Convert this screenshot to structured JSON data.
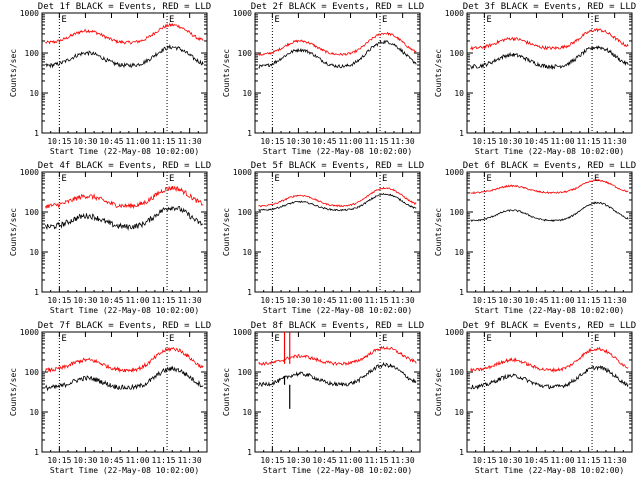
{
  "chart_data": [
    {
      "type": "line",
      "title": "Det 1f BLACK = Events, RED = LLD",
      "xlabel": "Start Time (22-May-08 10:02:00)",
      "ylabel": "Counts/sec",
      "yscale": "log",
      "ylim": [
        1,
        1000
      ],
      "x_ticks": [
        "10:15",
        "10:30",
        "10:45",
        "11:00",
        "11:15",
        "11:30"
      ],
      "y_ticks": [
        "1",
        "10",
        "100",
        "1000"
      ],
      "markers": [
        "E",
        "E"
      ],
      "marker_times": [
        "10:15",
        "11:17"
      ],
      "series": [
        {
          "color": "#ff0000",
          "level": "high",
          "peaks": [
            {
              "time": "10:31",
              "value": 360
            },
            {
              "time": "11:20",
              "value": 500
            }
          ],
          "base": 180,
          "noise": 0.04
        },
        {
          "color": "#000000",
          "level": "low",
          "peaks": [
            {
              "time": "10:31",
              "value": 100
            },
            {
              "time": "11:20",
              "value": 140
            }
          ],
          "base": 48,
          "noise": 0.05
        }
      ]
    },
    {
      "type": "line",
      "title": "Det 2f BLACK = Events, RED = LLD",
      "xlabel": "Start Time (22-May-08 10:02:00)",
      "ylabel": "Counts/sec",
      "yscale": "log",
      "ylim": [
        1,
        1000
      ],
      "x_ticks": [
        "10:15",
        "10:30",
        "10:45",
        "11:00",
        "11:15",
        "11:30"
      ],
      "y_ticks": [
        "1",
        "10",
        "100",
        "1000"
      ],
      "markers": [
        "E",
        "E"
      ],
      "marker_times": [
        "10:15",
        "11:17"
      ],
      "series": [
        {
          "color": "#ff0000",
          "peaks": [
            {
              "time": "10:31",
              "value": 200
            },
            {
              "time": "11:20",
              "value": 310
            }
          ],
          "base": 90,
          "noise": 0.03
        },
        {
          "color": "#000000",
          "peaks": [
            {
              "time": "10:31",
              "value": 120
            },
            {
              "time": "11:20",
              "value": 190
            }
          ],
          "base": 45,
          "noise": 0.04
        }
      ]
    },
    {
      "type": "line",
      "title": "Det 3f BLACK = Events, RED = LLD",
      "xlabel": "Start Time (22-May-08 10:02:00)",
      "ylabel": "Counts/sec",
      "yscale": "log",
      "ylim": [
        1,
        1000
      ],
      "x_ticks": [
        "10:15",
        "10:30",
        "10:45",
        "11:00",
        "11:15",
        "11:30"
      ],
      "y_ticks": [
        "1",
        "10",
        "100",
        "1000"
      ],
      "markers": [
        "E",
        "E"
      ],
      "marker_times": [
        "10:15",
        "11:17"
      ],
      "series": [
        {
          "color": "#ff0000",
          "peaks": [
            {
              "time": "10:31",
              "value": 230
            },
            {
              "time": "11:20",
              "value": 380
            }
          ],
          "base": 130,
          "noise": 0.04
        },
        {
          "color": "#000000",
          "peaks": [
            {
              "time": "10:31",
              "value": 90
            },
            {
              "time": "11:20",
              "value": 140
            }
          ],
          "base": 45,
          "noise": 0.05
        }
      ]
    },
    {
      "type": "line",
      "title": "Det 4f BLACK = Events, RED = LLD",
      "xlabel": "Start Time (22-May-08 10:02:00)",
      "ylabel": "Counts/sec",
      "yscale": "log",
      "ylim": [
        1,
        1000
      ],
      "x_ticks": [
        "10:15",
        "10:30",
        "10:45",
        "11:00",
        "11:15",
        "11:30"
      ],
      "y_ticks": [
        "1",
        "10",
        "100",
        "1000"
      ],
      "markers": [
        "E",
        "E"
      ],
      "marker_times": [
        "10:15",
        "11:17"
      ],
      "series": [
        {
          "color": "#ff0000",
          "peaks": [
            {
              "time": "10:31",
              "value": 250
            },
            {
              "time": "11:20",
              "value": 400
            }
          ],
          "base": 140,
          "noise": 0.06
        },
        {
          "color": "#000000",
          "peaks": [
            {
              "time": "10:31",
              "value": 80
            },
            {
              "time": "11:20",
              "value": 130
            }
          ],
          "base": 42,
          "noise": 0.07
        }
      ]
    },
    {
      "type": "line",
      "title": "Det 5f BLACK = Events, RED = LLD",
      "xlabel": "Start Time (22-May-08 10:02:00)",
      "ylabel": "Counts/sec",
      "yscale": "log",
      "ylim": [
        1,
        1000
      ],
      "x_ticks": [
        "10:15",
        "10:30",
        "10:45",
        "11:00",
        "11:15",
        "11:30"
      ],
      "y_ticks": [
        "1",
        "10",
        "100",
        "1000"
      ],
      "markers": [
        "E",
        "E"
      ],
      "marker_times": [
        "10:15",
        "11:17"
      ],
      "series": [
        {
          "color": "#ff0000",
          "peaks": [
            {
              "time": "10:31",
              "value": 260
            },
            {
              "time": "11:20",
              "value": 400
            }
          ],
          "base": 140,
          "noise": 0.02
        },
        {
          "color": "#000000",
          "peaks": [
            {
              "time": "10:31",
              "value": 180
            },
            {
              "time": "11:20",
              "value": 280
            }
          ],
          "base": 110,
          "noise": 0.02
        }
      ]
    },
    {
      "type": "line",
      "title": "Det 6f BLACK = Events, RED = LLD",
      "xlabel": "Start Time (22-May-08 10:02:00)",
      "ylabel": "Counts/sec",
      "yscale": "log",
      "ylim": [
        1,
        1000
      ],
      "x_ticks": [
        "10:15",
        "10:30",
        "10:45",
        "11:00",
        "11:15",
        "11:30"
      ],
      "y_ticks": [
        "1",
        "10",
        "100",
        "1000"
      ],
      "markers": [
        "E",
        "E"
      ],
      "marker_times": [
        "10:15",
        "11:17"
      ],
      "series": [
        {
          "color": "#ff0000",
          "peaks": [
            {
              "time": "10:31",
              "value": 450
            },
            {
              "time": "11:20",
              "value": 620
            }
          ],
          "base": 300,
          "noise": 0.02
        },
        {
          "color": "#000000",
          "peaks": [
            {
              "time": "10:31",
              "value": 110
            },
            {
              "time": "11:20",
              "value": 170
            }
          ],
          "base": 60,
          "noise": 0.02
        }
      ]
    },
    {
      "type": "line",
      "title": "Det 7f BLACK = Events, RED = LLD",
      "xlabel": "Start Time (22-May-08 10:02:00)",
      "ylabel": "Counts/sec",
      "yscale": "log",
      "ylim": [
        1,
        1000
      ],
      "x_ticks": [
        "10:15",
        "10:30",
        "10:45",
        "11:00",
        "11:15",
        "11:30"
      ],
      "y_ticks": [
        "1",
        "10",
        "100",
        "1000"
      ],
      "markers": [
        "E",
        "E"
      ],
      "marker_times": [
        "10:15",
        "11:17"
      ],
      "series": [
        {
          "color": "#ff0000",
          "peaks": [
            {
              "time": "10:31",
              "value": 200
            },
            {
              "time": "11:20",
              "value": 380
            }
          ],
          "base": 110,
          "noise": 0.05
        },
        {
          "color": "#000000",
          "peaks": [
            {
              "time": "10:31",
              "value": 70
            },
            {
              "time": "11:20",
              "value": 120
            }
          ],
          "base": 40,
          "noise": 0.06
        }
      ]
    },
    {
      "type": "line",
      "title": "Det 8f BLACK = Events, RED = LLD",
      "xlabel": "Start Time (22-May-08 10:02:00)",
      "ylabel": "Counts/sec",
      "yscale": "log",
      "ylim": [
        1,
        1000
      ],
      "x_ticks": [
        "10:15",
        "10:30",
        "10:45",
        "11:00",
        "11:15",
        "11:30"
      ],
      "y_ticks": [
        "1",
        "10",
        "100",
        "1000"
      ],
      "markers": [
        "E",
        "E"
      ],
      "marker_times": [
        "10:15",
        "11:17"
      ],
      "series": [
        {
          "color": "#ff0000",
          "peaks": [
            {
              "time": "10:31",
              "value": 250
            },
            {
              "time": "11:20",
              "value": 400
            }
          ],
          "base": 160,
          "noise": 0.04,
          "spikes": [
            {
              "time": "10:22",
              "value": 1000
            },
            {
              "time": "10:25",
              "value": 1000
            }
          ]
        },
        {
          "color": "#000000",
          "peaks": [
            {
              "time": "10:31",
              "value": 90
            },
            {
              "time": "11:20",
              "value": 150
            }
          ],
          "base": 48,
          "noise": 0.05,
          "spikes": [
            {
              "time": "10:22",
              "value": 80
            },
            {
              "time": "10:25",
              "value": 12
            }
          ]
        }
      ]
    },
    {
      "type": "line",
      "title": "Det 9f BLACK = Events, RED = LLD",
      "xlabel": "Start Time (22-May-08 10:02:00)",
      "ylabel": "Counts/sec",
      "yscale": "log",
      "ylim": [
        1,
        1000
      ],
      "x_ticks": [
        "10:15",
        "10:30",
        "10:45",
        "11:00",
        "11:15",
        "11:30"
      ],
      "y_ticks": [
        "1",
        "10",
        "100",
        "1000"
      ],
      "markers": [
        "E",
        "E"
      ],
      "marker_times": [
        "10:15",
        "11:17"
      ],
      "series": [
        {
          "color": "#ff0000",
          "peaks": [
            {
              "time": "10:31",
              "value": 200
            },
            {
              "time": "11:20",
              "value": 380
            }
          ],
          "base": 110,
          "noise": 0.04
        },
        {
          "color": "#000000",
          "peaks": [
            {
              "time": "10:31",
              "value": 80
            },
            {
              "time": "11:20",
              "value": 130
            }
          ],
          "base": 42,
          "noise": 0.05
        }
      ]
    }
  ]
}
